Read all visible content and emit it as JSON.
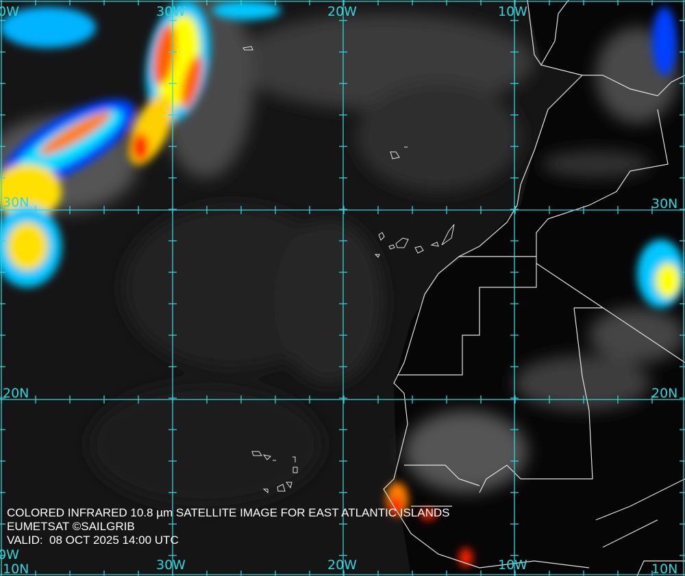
{
  "caption": {
    "title": "COLORED INFRARED 10.8 µm SATELLITE IMAGE FOR EAST ATLANTIC ISLANDS",
    "credit": "EUMETSAT ©SAILGRIB",
    "valid": "VALID:  08 OCT 2025 14:00 UTC"
  },
  "grid": {
    "top_labels": [
      "0W",
      "30W",
      "20W",
      "10W"
    ],
    "bottom_labels": [
      "0W",
      "30W",
      "20W",
      "10W"
    ],
    "left_labels": [
      "30N",
      "20N",
      "10N"
    ],
    "right_labels": [
      "30N",
      "20N",
      "10N"
    ]
  },
  "colors": {
    "grid": "#2fd6dc",
    "coast": "#e6e6e6",
    "background": "#151515",
    "cloud_scale": [
      "#0000ff",
      "#00c8ff",
      "#00ffc8",
      "#ffff00",
      "#ff8000",
      "#ff0000"
    ]
  }
}
